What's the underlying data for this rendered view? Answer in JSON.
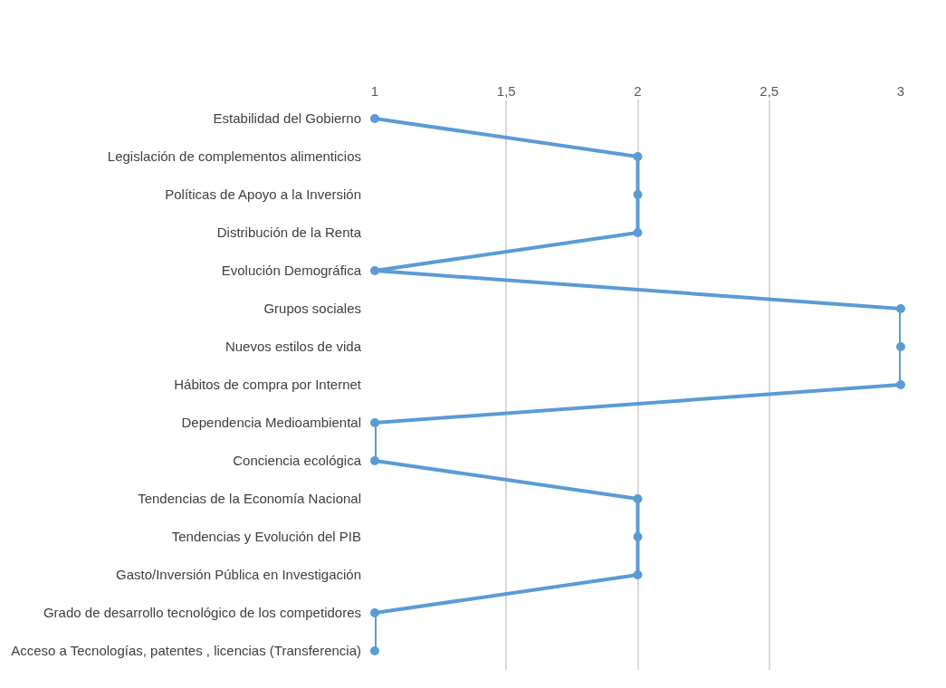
{
  "chart_data": {
    "type": "line",
    "orientation": "horizontal",
    "categories": [
      "Estabilidad del Gobierno",
      "Legislación de complementos alimenticios",
      "Políticas de Apoyo a la Inversión",
      "Distribución de la Renta",
      "Evolución Demográfica",
      "Grupos sociales",
      "Nuevos estilos de vida",
      "Hábitos de compra por Internet",
      "Dependencia Medioambiental",
      "Conciencia ecológica",
      "Tendencias de la Economía Nacional",
      "Tendencias y Evolución del PIB",
      "Gasto/Inversión Pública en Investigación",
      "Grado de desarrollo tecnológico de los competidores",
      "Acceso a Tecnologías, patentes , licencias (Transferencia)"
    ],
    "series": [
      {
        "color": "#5b9bd5",
        "values": [
          1,
          2,
          2,
          2,
          1,
          3,
          3,
          3,
          1,
          1,
          2,
          2,
          2,
          1,
          1
        ]
      }
    ],
    "xlim": [
      1,
      3
    ],
    "xticks": [
      1,
      {
        "value": 1.5,
        "label": "1,5"
      },
      2,
      {
        "value": 2.5,
        "label": "2,5"
      },
      3
    ],
    "grid": "x",
    "legend": false,
    "marker": "circle",
    "line_style": "solid"
  }
}
